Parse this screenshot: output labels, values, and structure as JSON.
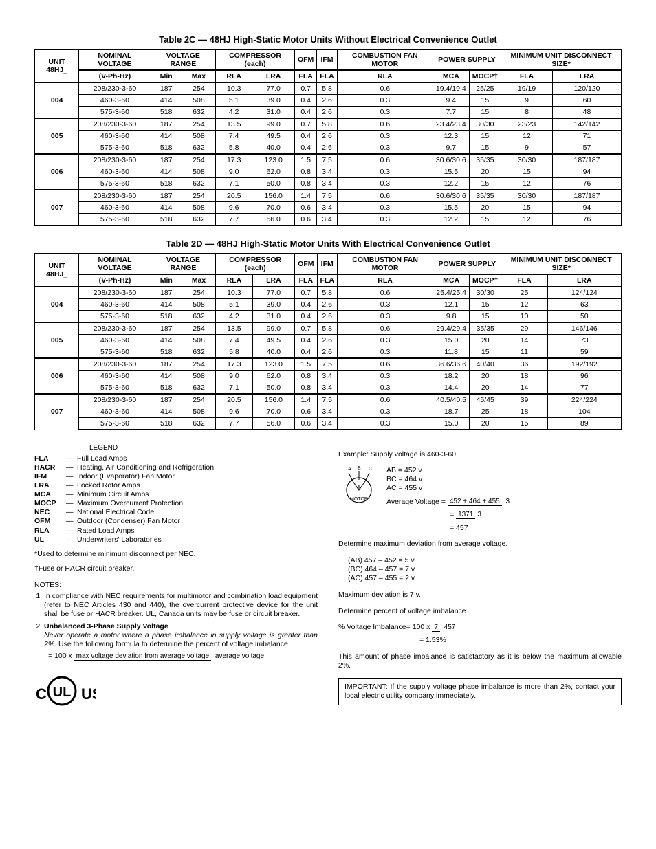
{
  "table2c": {
    "title": "Table 2C — 48HJ High-Static Motor Units Without Electrical Convenience Outlet",
    "headers": {
      "unit": "UNIT 48HJ_",
      "nominal": "NOMINAL VOLTAGE",
      "nominal_sub": "(V-Ph-Hz)",
      "vrange": "VOLTAGE RANGE",
      "min": "Min",
      "max": "Max",
      "compressor": "COMPRESSOR (each)",
      "rla": "RLA",
      "lra": "LRA",
      "ofm": "OFM",
      "ifm": "IFM",
      "fla": "FLA",
      "combustion": "COMBUSTION FAN MOTOR",
      "power": "POWER SUPPLY",
      "mca": "MCA",
      "mocp": "MOCP†",
      "mindisc": "MINIMUM UNIT DISCONNECT SIZE*"
    },
    "units": [
      {
        "unit": "004",
        "rows": [
          [
            "208/230-3-60",
            "187",
            "254",
            "10.3",
            "77.0",
            "0.7",
            "5.8",
            "0.6",
            "19.4/19.4",
            "25/25",
            "19/19",
            "120/120"
          ],
          [
            "460-3-60",
            "414",
            "508",
            "5.1",
            "39.0",
            "0.4",
            "2.6",
            "0.3",
            "9.4",
            "15",
            "9",
            "60"
          ],
          [
            "575-3-60",
            "518",
            "632",
            "4.2",
            "31.0",
            "0.4",
            "2.6",
            "0.3",
            "7.7",
            "15",
            "8",
            "48"
          ]
        ]
      },
      {
        "unit": "005",
        "rows": [
          [
            "208/230-3-60",
            "187",
            "254",
            "13.5",
            "99.0",
            "0.7",
            "5.8",
            "0.6",
            "23.4/23.4",
            "30/30",
            "23/23",
            "142/142"
          ],
          [
            "460-3-60",
            "414",
            "508",
            "7.4",
            "49.5",
            "0.4",
            "2.6",
            "0.3",
            "12.3",
            "15",
            "12",
            "71"
          ],
          [
            "575-3-60",
            "518",
            "632",
            "5.8",
            "40.0",
            "0.4",
            "2.6",
            "0.3",
            "9.7",
            "15",
            "9",
            "57"
          ]
        ]
      },
      {
        "unit": "006",
        "rows": [
          [
            "208/230-3-60",
            "187",
            "254",
            "17.3",
            "123.0",
            "1.5",
            "7.5",
            "0.6",
            "30.6/30.6",
            "35/35",
            "30/30",
            "187/187"
          ],
          [
            "460-3-60",
            "414",
            "508",
            "9.0",
            "62.0",
            "0.8",
            "3.4",
            "0.3",
            "15.5",
            "20",
            "15",
            "94"
          ],
          [
            "575-3-60",
            "518",
            "632",
            "7.1",
            "50.0",
            "0.8",
            "3.4",
            "0.3",
            "12.2",
            "15",
            "12",
            "76"
          ]
        ]
      },
      {
        "unit": "007",
        "rows": [
          [
            "208/230-3-60",
            "187",
            "254",
            "20.5",
            "156.0",
            "1.4",
            "7.5",
            "0.6",
            "30.6/30.6",
            "35/35",
            "30/30",
            "187/187"
          ],
          [
            "460-3-60",
            "414",
            "508",
            "9.6",
            "70.0",
            "0.6",
            "3.4",
            "0.3",
            "15.5",
            "20",
            "15",
            "94"
          ],
          [
            "575-3-60",
            "518",
            "632",
            "7.7",
            "56.0",
            "0.6",
            "3.4",
            "0.3",
            "12.2",
            "15",
            "12",
            "76"
          ]
        ]
      }
    ]
  },
  "table2d": {
    "title": "Table 2D — 48HJ High-Static Motor Units With Electrical Convenience Outlet",
    "units": [
      {
        "unit": "004",
        "rows": [
          [
            "208/230-3-60",
            "187",
            "254",
            "10.3",
            "77.0",
            "0.7",
            "5.8",
            "0.6",
            "25.4/25.4",
            "30/30",
            "25",
            "124/124"
          ],
          [
            "460-3-60",
            "414",
            "508",
            "5.1",
            "39.0",
            "0.4",
            "2.6",
            "0.3",
            "12.1",
            "15",
            "12",
            "63"
          ],
          [
            "575-3-60",
            "518",
            "632",
            "4.2",
            "31.0",
            "0.4",
            "2.6",
            "0.3",
            "9.8",
            "15",
            "10",
            "50"
          ]
        ]
      },
      {
        "unit": "005",
        "rows": [
          [
            "208/230-3-60",
            "187",
            "254",
            "13.5",
            "99.0",
            "0.7",
            "5.8",
            "0.6",
            "29.4/29.4",
            "35/35",
            "29",
            "146/146"
          ],
          [
            "460-3-60",
            "414",
            "508",
            "7.4",
            "49.5",
            "0.4",
            "2.6",
            "0.3",
            "15.0",
            "20",
            "14",
            "73"
          ],
          [
            "575-3-60",
            "518",
            "632",
            "5.8",
            "40.0",
            "0.4",
            "2.6",
            "0.3",
            "11.8",
            "15",
            "11",
            "59"
          ]
        ]
      },
      {
        "unit": "006",
        "rows": [
          [
            "208/230-3-60",
            "187",
            "254",
            "17.3",
            "123.0",
            "1.5",
            "7.5",
            "0.6",
            "36.6/36.6",
            "40/40",
            "36",
            "192/192"
          ],
          [
            "460-3-60",
            "414",
            "508",
            "9.0",
            "62.0",
            "0.8",
            "3.4",
            "0.3",
            "18.2",
            "20",
            "18",
            "96"
          ],
          [
            "575-3-60",
            "518",
            "632",
            "7.1",
            "50.0",
            "0.8",
            "3.4",
            "0.3",
            "14.4",
            "20",
            "14",
            "77"
          ]
        ]
      },
      {
        "unit": "007",
        "rows": [
          [
            "208/230-3-60",
            "187",
            "254",
            "20.5",
            "156.0",
            "1.4",
            "7.5",
            "0.6",
            "40.5/40.5",
            "45/45",
            "39",
            "224/224"
          ],
          [
            "460-3-60",
            "414",
            "508",
            "9.6",
            "70.0",
            "0.6",
            "3.4",
            "0.3",
            "18.7",
            "25",
            "18",
            "104"
          ],
          [
            "575-3-60",
            "518",
            "632",
            "7.7",
            "56.0",
            "0.6",
            "3.4",
            "0.3",
            "15.0",
            "20",
            "15",
            "89"
          ]
        ]
      }
    ]
  },
  "legend": {
    "title": "LEGEND",
    "items": [
      [
        "FLA",
        "Full Load Amps"
      ],
      [
        "HACR",
        "Heating, Air Conditioning and Refrigeration"
      ],
      [
        "IFM",
        "Indoor (Evaporator) Fan Motor"
      ],
      [
        "LRA",
        "Locked Rotor Amps"
      ],
      [
        "MCA",
        "Minimum Circuit Amps"
      ],
      [
        "MOCP",
        "Maximum Overcurrent Protection"
      ],
      [
        "NEC",
        "National Electrical Code"
      ],
      [
        "OFM",
        "Outdoor (Condenser) Fan Motor"
      ],
      [
        "RLA",
        "Rated Load Amps"
      ],
      [
        "UL",
        "Underwriters' Laboratories"
      ]
    ],
    "footnote_star": "*Used to determine minimum disconnect per NEC.",
    "footnote_dagger": "†Fuse or HACR circuit breaker."
  },
  "notes": {
    "title": "NOTES:",
    "n1": "In compliance with NEC requirements for multimotor and combination load equipment (refer to NEC Articles 430 and 440), the overcurrent protective device for the unit shall be fuse or HACR breaker. UL, Canada units may be fuse or circuit breaker.",
    "n2_bold": "Unbalanced 3-Phase Supply Voltage",
    "n2_italic": "Never operate a motor where a phase imbalance in supply voltage is greater than 2%.",
    "n2_rest": " Use the following formula to determine the percent of voltage imbalance.",
    "formula_prefix": "= 100 x ",
    "formula_num": "max voltage deviation from average voltage",
    "formula_den": "average voltage"
  },
  "right": {
    "example_intro": "Example: Supply voltage is 460-3-60.",
    "ab": "AB = 452 v",
    "bc": "BC = 464 v",
    "ac": "AC = 455 v",
    "avg_label": "Average Voltage = ",
    "avg_num": "452 + 464 + 455",
    "avg_den": "3",
    "eq1_num": "1371",
    "eq1_den": "3",
    "eq2": "= 457",
    "det_max": "Determine maximum deviation from average voltage.",
    "dev_ab": "(AB) 457 – 452 = 5 v",
    "dev_bc": "(BC) 464 – 457 = 7 v",
    "dev_ac": "(AC) 457 – 455 = 2 v",
    "max_dev": "Maximum deviation is 7 v.",
    "det_pct": "Determine percent of voltage imbalance.",
    "imb_label": "% Voltage Imbalance= 100 x ",
    "imb_num": "7",
    "imb_den": "457",
    "imb_result": "= 1.53%",
    "conclusion": "This amount of phase imbalance is satisfactory as it is below the maximum allowable 2%.",
    "important": "IMPORTANT: If the supply voltage phase imbalance is more than 2%, contact your local electric utility company immediately."
  }
}
